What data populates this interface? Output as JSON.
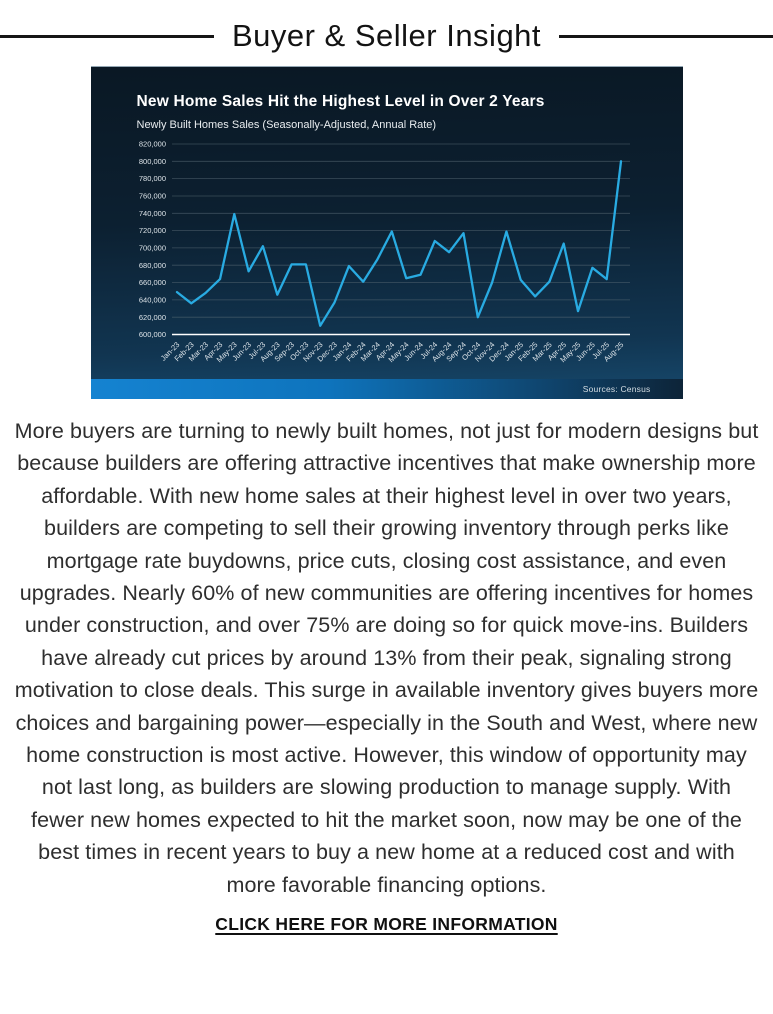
{
  "header": {
    "title": "Buyer & Seller Insight"
  },
  "chart": {
    "title": "New Home Sales Hit the Highest Level in Over 2 Years",
    "subtitle": "Newly Built Homes Sales (Seasonally-Adjusted, Annual Rate)",
    "source": "Sources: Census"
  },
  "chart_data": {
    "type": "line",
    "title": "New Home Sales Hit the Highest Level in Over 2 Years",
    "subtitle": "Newly Built Homes Sales (Seasonally-Adjusted, Annual Rate)",
    "source": "Sources: Census",
    "categories": [
      "Jan-23",
      "Feb-23",
      "Mar-23",
      "Apr-23",
      "May-23",
      "Jun-23",
      "Jul-23",
      "Aug-23",
      "Sep-23",
      "Oct-23",
      "Nov-23",
      "Dec-23",
      "Jan-24",
      "Feb-24",
      "Mar-24",
      "Apr-24",
      "May-24",
      "Jun-24",
      "Jul-24",
      "Aug-24",
      "Sep-24",
      "Oct-24",
      "Nov-24",
      "Dec-24",
      "Jan-25",
      "Feb-25",
      "Mar-25",
      "Apr-25",
      "May-25",
      "Jun-25",
      "Jul-25",
      "Aug-25"
    ],
    "values": [
      649000,
      636000,
      648000,
      664000,
      739000,
      673000,
      702000,
      646000,
      681000,
      681000,
      610000,
      637000,
      679000,
      661000,
      687000,
      719000,
      665000,
      669000,
      708000,
      695000,
      717000,
      620000,
      660000,
      719000,
      663000,
      644000,
      661000,
      705000,
      627000,
      677000,
      664000,
      800000
    ],
    "ylim": [
      600000,
      820000
    ],
    "ytick_step": 20000,
    "grid": true,
    "legend": "none",
    "colors": {
      "line": "#29abe2",
      "gridline": "#5a6b76",
      "axis_baseline": "#ffffff",
      "tick_text": "#dde4e9",
      "background_top": "#0a1824",
      "background_bottom": "#174a6e",
      "footer_gradient_left": "#1583d1",
      "footer_gradient_right": "#0d2438"
    }
  },
  "article": {
    "text": "More buyers are turning to newly built homes, not just for modern designs but because builders are offering attractive incentives that make ownership more affordable. With new home sales at their highest level in over two years, builders are competing to sell their growing inventory through perks like mortgage rate buydowns, price cuts, closing cost assistance, and even upgrades. Nearly 60% of new communities are offering incentives for homes under construction, and over 75% are doing so for quick move-ins. Builders have already cut prices by around 13% from their peak, signaling strong motivation to close deals. This surge in available inventory gives buyers more choices and bargaining power—especially in the South and West, where new home construction is most active. However, this window of opportunity may not last long, as builders are slowing production to manage supply. With fewer new homes expected to hit the market soon, now may be one of the best times in recent years to buy a new home at a reduced cost and with more favorable financing options."
  },
  "cta": {
    "label": "CLICK HERE FOR MORE INFORMATION"
  }
}
